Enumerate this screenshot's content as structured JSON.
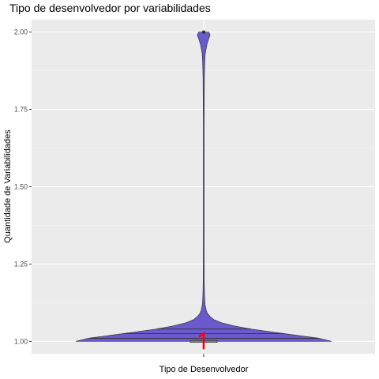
{
  "chart_data": {
    "type": "violin",
    "title": "Tipo de desenvolvedor por variabilidades",
    "xlabel": "Tipo de Desenvolvedor",
    "ylabel": "Quantidade de Variabilidades",
    "ylim": [
      0.96,
      2.04
    ],
    "yticks": [
      1.0,
      1.25,
      1.5,
      1.75,
      2.0
    ],
    "ytick_labels": [
      "1.00",
      "1.25",
      "1.50",
      "1.75",
      "2.00"
    ],
    "grid": true,
    "fill_color": "#6a5acd",
    "background_color": "#ebebeb",
    "distribution": {
      "y": [
        1.0,
        1.01,
        1.02,
        1.03,
        1.04,
        1.05,
        1.06,
        1.07,
        1.08,
        1.09,
        1.1,
        1.12,
        1.15,
        1.2,
        1.3,
        1.5,
        1.7,
        1.85,
        1.9,
        1.93,
        1.96,
        1.98,
        1.99,
        2.0
      ],
      "relative_width": [
        1.0,
        0.9,
        0.72,
        0.54,
        0.37,
        0.24,
        0.14,
        0.08,
        0.05,
        0.03,
        0.02,
        0.01,
        0.006,
        0.004,
        0.003,
        0.003,
        0.003,
        0.005,
        0.008,
        0.012,
        0.025,
        0.04,
        0.05,
        0.04
      ]
    },
    "box": {
      "q1": 1.0,
      "median": 1.0,
      "q3": 1.0,
      "whisker_low": 1.0,
      "whisker_high": 1.0,
      "color": "#4d4d4d"
    },
    "quantile_lines": [
      1.01,
      1.025,
      1.04
    ],
    "mean_marker": {
      "value": 1.0,
      "color": "#ff0000"
    },
    "outlier": {
      "value": 2.0
    }
  }
}
